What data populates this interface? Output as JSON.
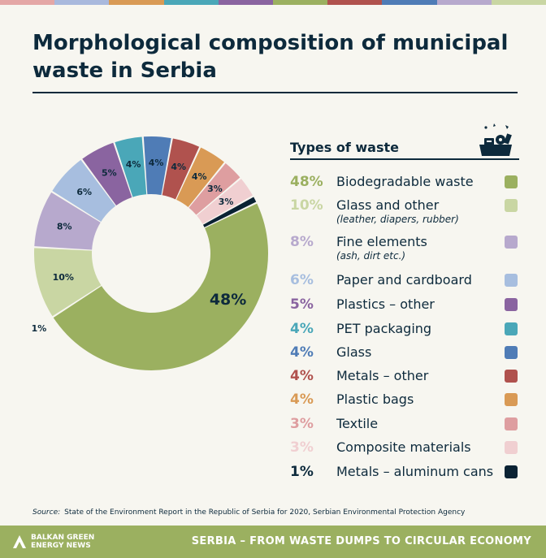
{
  "header": {
    "title": "Morphological composition of municipal waste in Serbia"
  },
  "legend": {
    "title": "Types of waste",
    "icon": "waste-bin-icon"
  },
  "chart_data": {
    "type": "pie",
    "donut": true,
    "unit": "%",
    "slices": [
      {
        "label": "Biodegradable waste",
        "value": 48,
        "display": "48%",
        "color": "#9bb060"
      },
      {
        "label": "Glass and other",
        "note": "(leather, diapers, rubber)",
        "value": 10,
        "display": "10%",
        "color": "#c9d6a3"
      },
      {
        "label": "Fine elements",
        "note": "(ash, dirt etc.)",
        "value": 8,
        "display": "8%",
        "color": "#b7a9cd"
      },
      {
        "label": "Paper and cardboard",
        "value": 6,
        "display": "6%",
        "color": "#a7bedf"
      },
      {
        "label": "Plastics – other",
        "value": 5,
        "display": "5%",
        "color": "#8a64a0"
      },
      {
        "label": "PET packaging",
        "value": 4,
        "display": "4%",
        "color": "#4aa7b8"
      },
      {
        "label": "Glass",
        "value": 4,
        "display": "4%",
        "color": "#4f7cb6"
      },
      {
        "label": "Metals – other",
        "value": 4,
        "display": "4%",
        "color": "#b0524e"
      },
      {
        "label": "Plastic bags",
        "value": 4,
        "display": "4%",
        "color": "#d99a55"
      },
      {
        "label": "Textile",
        "value": 3,
        "display": "3%",
        "color": "#de9ea0"
      },
      {
        "label": "Composite materials",
        "value": 3,
        "display": "3%",
        "color": "#f0cfd1"
      },
      {
        "label": "Metals – aluminum cans",
        "value": 1,
        "display": "1%",
        "color": "#0a2233"
      }
    ]
  },
  "source": {
    "label": "Source:",
    "text": "State of the Environment Report in the Republic of Serbia for 2020, Serbian Environmental Protection Agency"
  },
  "footer": {
    "logo_text": "BALKAN GREEN ENERGY NEWS",
    "tagline": "SERBIA – FROM WASTE DUMPS TO CIRCULAR ECONOMY",
    "color": "#9bb060"
  },
  "top_strip_colors": [
    "#e4a7a6",
    "#a9b9dd",
    "#d99a55",
    "#4aa7b8",
    "#8a64a0",
    "#9bb060",
    "#b0524e",
    "#4f7cb6",
    "#b7a9cd",
    "#c9d6a3"
  ]
}
